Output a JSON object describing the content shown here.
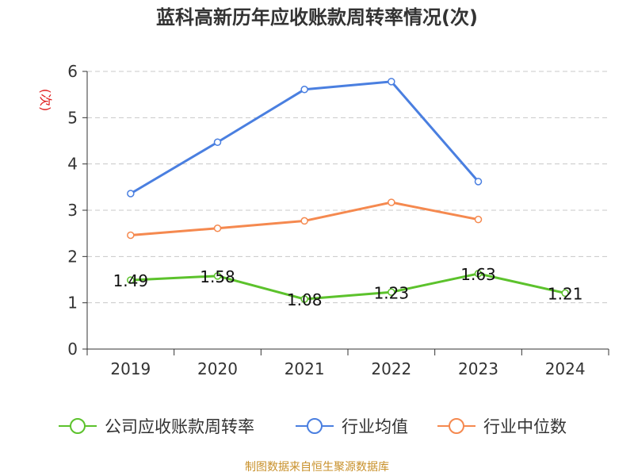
{
  "chart_data": {
    "type": "line",
    "title": "蓝科高新历年应收账款周转率情况(次)",
    "ylabel": "(次)",
    "xlabel": "",
    "categories": [
      "2019",
      "2020",
      "2021",
      "2022",
      "2023",
      "2024"
    ],
    "ylim": [
      0,
      6
    ],
    "yticks": [
      "0",
      "1",
      "2",
      "3",
      "4",
      "5",
      "6"
    ],
    "grid": true,
    "legend": "bottom",
    "series": [
      {
        "name": "公司应收账款周转率",
        "color": "#5cc22c",
        "values": [
          1.49,
          1.58,
          1.08,
          1.23,
          1.63,
          1.21
        ],
        "labels": [
          "1.49",
          "1.58",
          "1.08",
          "1.23",
          "1.63",
          "1.21"
        ]
      },
      {
        "name": "行业均值",
        "color": "#4a7fe0",
        "values": [
          3.36,
          4.47,
          5.61,
          5.78,
          3.62,
          null
        ]
      },
      {
        "name": "行业中位数",
        "color": "#f5894f",
        "values": [
          2.46,
          2.61,
          2.77,
          3.17,
          2.8,
          null
        ]
      }
    ]
  },
  "source": "制图数据来自恒生聚源数据库"
}
